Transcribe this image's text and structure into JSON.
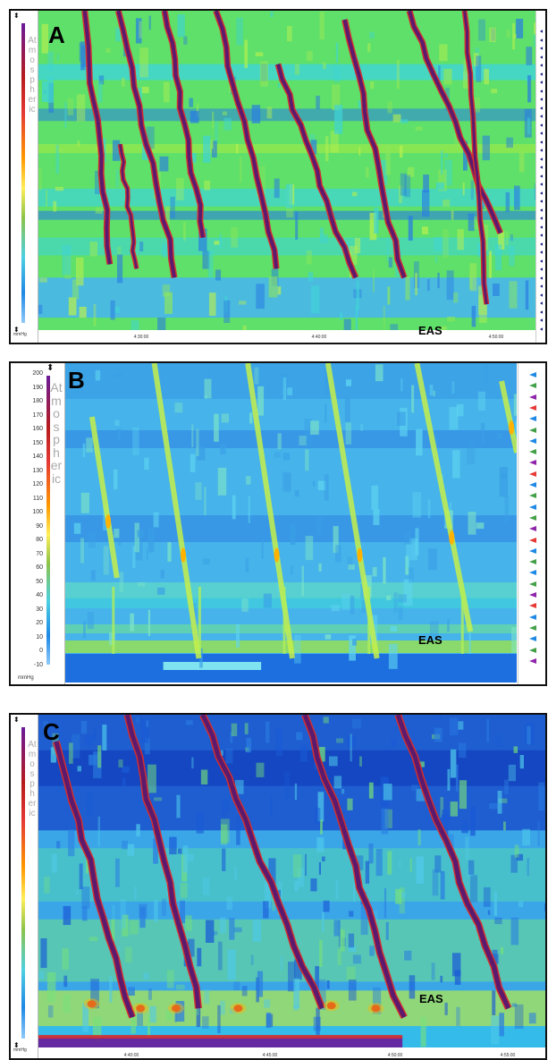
{
  "panels": [
    {
      "label": "A",
      "annotation": "EAS",
      "scale_label": "Atmospheric",
      "unit": "mmHg",
      "x_ticks": [
        "4:30:00",
        "4:40:00",
        "4:50:00"
      ],
      "contraction_count": 7
    },
    {
      "label": "B",
      "annotation": "EAS",
      "scale_label": "Atmospheric",
      "unit": "mmHg",
      "y_ticks": [
        "200",
        "190",
        "180",
        "170",
        "160",
        "150",
        "140",
        "130",
        "120",
        "110",
        "100",
        "90",
        "80",
        "70",
        "60",
        "50",
        "40",
        "30",
        "20",
        "10",
        "0",
        "-10"
      ],
      "contraction_count": 6
    },
    {
      "label": "C",
      "annotation": "EAS",
      "scale_label": "Atmospheric",
      "unit": "mmHg",
      "x_ticks": [
        "4:40:00",
        "4:45:00",
        "4:50:00",
        "4:55:00"
      ],
      "contraction_count": 5
    }
  ],
  "colors": {
    "background_green": "#5ee06a",
    "background_cyan": "#3fd4d8",
    "background_blue": "#2a7de1",
    "deep_blue": "#1546c8",
    "contraction_core": "#5b1a6e",
    "contraction_edge": "#d32f2f",
    "warm": "#ffb300"
  },
  "chart_data": [
    {
      "type": "heatmap",
      "title": "A",
      "xlabel": "",
      "ylabel": "",
      "x_ticks": [
        "4:30:00",
        "4:40:00",
        "4:50:00"
      ],
      "annotations": [
        "EAS"
      ],
      "legend": "colour scale (Atmospheric, mmHg)",
      "series": [
        {
          "values": [
            1,
            1,
            1,
            1,
            1,
            1,
            1
          ]
        }
      ]
    },
    {
      "type": "heatmap",
      "title": "B",
      "xlabel": "",
      "ylabel": "",
      "y_ticks": [
        200,
        190,
        180,
        170,
        160,
        150,
        140,
        130,
        120,
        110,
        100,
        90,
        80,
        70,
        60,
        50,
        40,
        30,
        20,
        10,
        0,
        -10
      ],
      "ylim": [
        -10,
        200
      ],
      "annotations": [
        "EAS"
      ],
      "legend": "colour scale (Atmospheric, mmHg)",
      "series": [
        {
          "values": [
            1,
            1,
            1,
            1,
            1,
            1
          ]
        }
      ]
    },
    {
      "type": "heatmap",
      "title": "C",
      "xlabel": "",
      "ylabel": "",
      "x_ticks": [
        "4:40:00",
        "4:45:00",
        "4:50:00",
        "4:55:00"
      ],
      "annotations": [
        "EAS"
      ],
      "legend": "colour scale (Atmospheric, mmHg)",
      "series": [
        {
          "values": [
            1,
            1,
            1,
            1,
            1
          ]
        }
      ]
    }
  ]
}
